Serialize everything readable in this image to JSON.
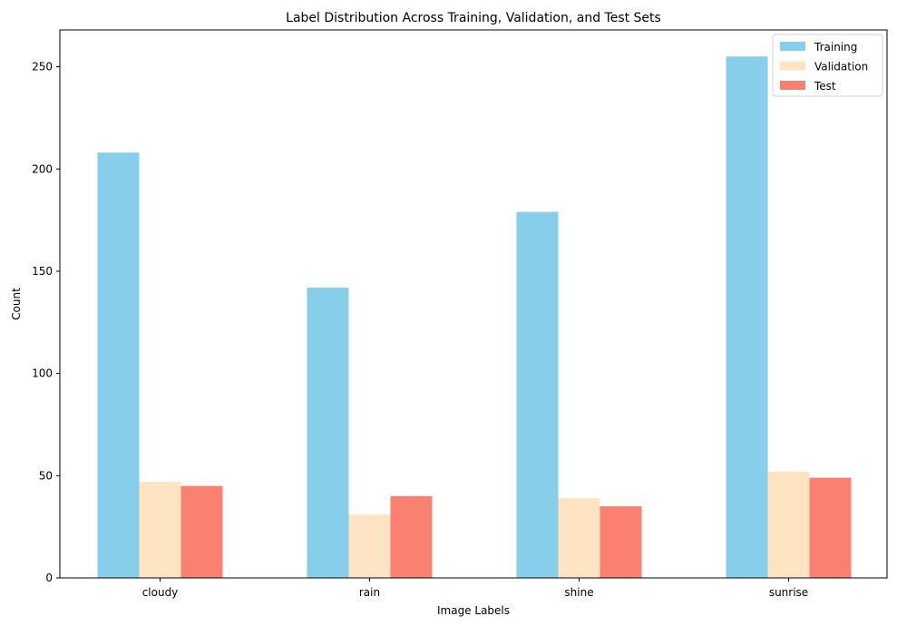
{
  "chart_data": {
    "type": "bar",
    "title": "Label Distribution Across Training, Validation, and Test Sets",
    "xlabel": "Image Labels",
    "ylabel": "Count",
    "categories": [
      "cloudy",
      "rain",
      "shine",
      "sunrise"
    ],
    "series": [
      {
        "name": "Training",
        "color": "#87ceeb",
        "values": [
          208,
          142,
          179,
          255
        ]
      },
      {
        "name": "Validation",
        "color": "#ffe4c4",
        "values": [
          47,
          31,
          39,
          52
        ]
      },
      {
        "name": "Test",
        "color": "#fa8072",
        "values": [
          45,
          40,
          35,
          49
        ]
      }
    ],
    "ylim": [
      0,
      268
    ],
    "yticks": [
      0,
      50,
      100,
      150,
      200,
      250
    ],
    "grid": false,
    "legend_position": "top-right"
  }
}
